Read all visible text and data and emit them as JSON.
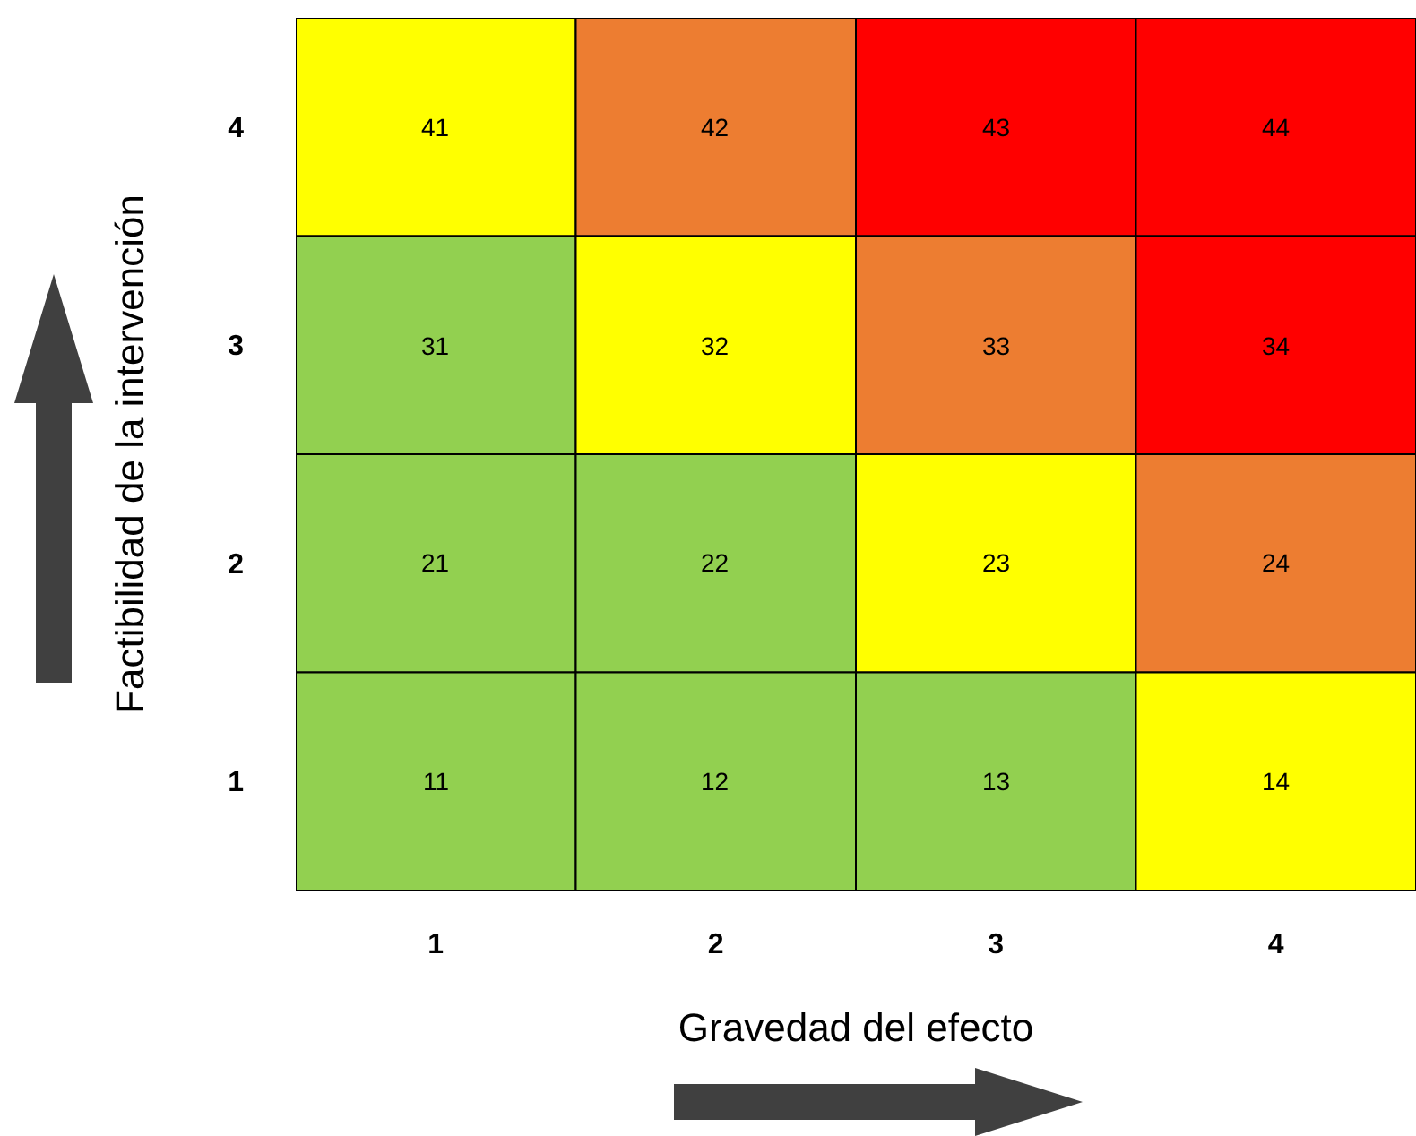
{
  "chart_data": {
    "type": "heatmap",
    "xlabel": "Gravedad del efecto",
    "ylabel": "Factibilidad de la intervención",
    "categories": [
      "1",
      "2",
      "3",
      "4"
    ],
    "y_categories": [
      "4",
      "3",
      "2",
      "1"
    ],
    "cells": [
      [
        41,
        42,
        43,
        44
      ],
      [
        31,
        32,
        33,
        34
      ],
      [
        21,
        22,
        23,
        24
      ],
      [
        11,
        12,
        13,
        14
      ]
    ],
    "colors": [
      [
        "#ffff00",
        "#ed7d31",
        "#ff0000",
        "#ff0000"
      ],
      [
        "#92d050",
        "#ffff00",
        "#ed7d31",
        "#ff0000"
      ],
      [
        "#92d050",
        "#92d050",
        "#ffff00",
        "#ed7d31"
      ],
      [
        "#92d050",
        "#92d050",
        "#92d050",
        "#ffff00"
      ]
    ],
    "data_labels": true
  }
}
